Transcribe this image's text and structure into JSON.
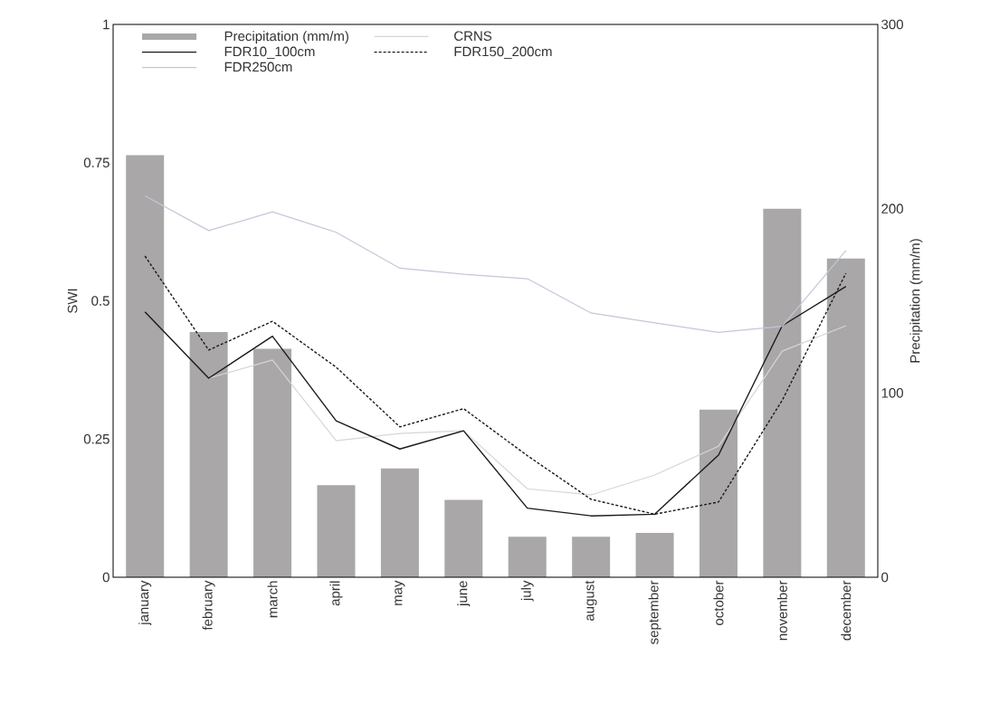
{
  "chart_data": {
    "type": "line",
    "ylabel": "SWI",
    "y2label": "Precipitation (mm/m)",
    "categories": [
      "january",
      "february",
      "march",
      "april",
      "may",
      "june",
      "july",
      "august",
      "september",
      "october",
      "november",
      "december"
    ],
    "series": [
      {
        "name": "Precipitation (mm/m)",
        "type": "bar",
        "axis": "y2",
        "color": "#a9a7a7",
        "values": [
          229,
          133,
          124,
          50,
          59,
          42,
          22,
          22,
          24,
          91,
          200,
          173
        ]
      },
      {
        "name": "CRNS",
        "color": "#d6d6d6",
        "values": [
          null,
          0.36,
          0.393,
          0.247,
          0.26,
          0.265,
          0.16,
          0.149,
          0.185,
          0.237,
          0.409,
          0.455
        ]
      },
      {
        "name": "FDR10_100cm",
        "color": "#1a1a1a",
        "values": [
          0.48,
          0.36,
          0.436,
          0.283,
          0.232,
          0.265,
          0.125,
          0.111,
          0.114,
          0.221,
          0.455,
          0.526
        ]
      },
      {
        "name": "FDR150_200cm",
        "color": "#1a1a1a",
        "line_style": "dashed",
        "values": [
          0.581,
          0.411,
          0.463,
          0.38,
          0.272,
          0.305,
          0.22,
          0.141,
          0.114,
          0.136,
          0.32,
          0.55
        ]
      },
      {
        "name": "FDR250cm",
        "color": "#c3c7d8",
        "values": [
          0.69,
          0.627,
          0.661,
          0.624,
          0.559,
          0.548,
          0.54,
          0.478,
          0.46,
          0.443,
          0.454,
          0.591
        ]
      }
    ],
    "ylim": [
      0,
      1
    ],
    "yticks": [
      0,
      0.25,
      0.5,
      0.75,
      1
    ],
    "y2lim": [
      0,
      300
    ],
    "y2ticks": [
      0,
      100,
      200,
      300
    ],
    "legend": "top left",
    "grid": false
  }
}
